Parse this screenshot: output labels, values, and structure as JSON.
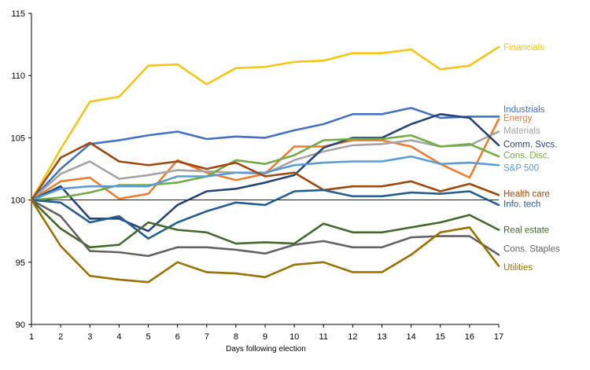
{
  "chart_data": {
    "type": "line",
    "title": "",
    "xlabel": "Days following election",
    "ylabel": "",
    "x": [
      1,
      2,
      3,
      4,
      5,
      6,
      7,
      8,
      9,
      10,
      11,
      12,
      13,
      14,
      15,
      16,
      17
    ],
    "xlim": [
      1,
      17
    ],
    "ylim": [
      90,
      115
    ],
    "yticks": [
      90,
      95,
      100,
      105,
      110,
      115
    ],
    "reference_line": 100,
    "grid": false,
    "legend": "direct labels at right end of lines",
    "series": [
      {
        "name": "Financials",
        "color": "#F5C518",
        "values": [
          100,
          104.1,
          107.9,
          108.3,
          110.8,
          110.9,
          109.3,
          110.6,
          110.7,
          111.1,
          111.2,
          111.8,
          111.8,
          112.1,
          110.5,
          110.8,
          112.3
        ]
      },
      {
        "name": "Industrials",
        "color": "#4472C4",
        "values": [
          100,
          102.5,
          104.5,
          104.8,
          105.2,
          105.5,
          104.9,
          105.1,
          105.0,
          105.6,
          106.1,
          106.9,
          106.9,
          107.4,
          106.6,
          106.7,
          106.7
        ]
      },
      {
        "name": "Energy",
        "color": "#ED7D31",
        "values": [
          100,
          101.5,
          101.8,
          100.1,
          100.5,
          103.2,
          102.2,
          101.6,
          102.1,
          104.3,
          104.3,
          104.8,
          104.8,
          104.3,
          102.9,
          101.8,
          106.5
        ]
      },
      {
        "name": "Materials",
        "color": "#A5A5A5",
        "values": [
          100,
          102.1,
          103.1,
          101.7,
          102.0,
          102.4,
          102.3,
          102.2,
          102.1,
          103.2,
          103.9,
          104.4,
          104.5,
          104.8,
          104.3,
          104.4,
          105.5
        ]
      },
      {
        "name": "Comm. Svcs.",
        "color": "#264478",
        "values": [
          100,
          101.1,
          98.5,
          98.5,
          97.5,
          99.6,
          100.7,
          100.9,
          101.4,
          102.0,
          104.2,
          105.0,
          105.0,
          106.1,
          106.9,
          106.6,
          104.4
        ]
      },
      {
        "name": "Cons. Disc.",
        "color": "#70AD47",
        "values": [
          100,
          100.2,
          100.6,
          101.2,
          101.2,
          101.4,
          101.9,
          103.2,
          102.9,
          103.6,
          104.8,
          104.9,
          104.9,
          105.2,
          104.3,
          104.5,
          103.5
        ]
      },
      {
        "name": "S&P 500",
        "color": "#5B9BD5",
        "values": [
          100,
          100.9,
          101.1,
          101.1,
          101.1,
          101.9,
          101.9,
          102.2,
          102.2,
          102.8,
          103.0,
          103.1,
          103.1,
          103.5,
          102.9,
          103.0,
          102.8
        ]
      },
      {
        "name": "Health care",
        "color": "#9E480E",
        "values": [
          100,
          103.4,
          104.6,
          103.1,
          102.8,
          103.1,
          102.5,
          103.0,
          101.9,
          102.2,
          100.8,
          101.1,
          101.1,
          101.5,
          100.7,
          101.3,
          100.4
        ]
      },
      {
        "name": "Info. tech",
        "color": "#255E91",
        "values": [
          100,
          99.8,
          98.2,
          98.7,
          96.9,
          98.2,
          99.1,
          99.8,
          99.6,
          100.7,
          100.8,
          100.3,
          100.3,
          100.6,
          100.5,
          100.7,
          99.6
        ]
      },
      {
        "name": "Real estate",
        "color": "#43682B",
        "values": [
          100,
          97.7,
          96.2,
          96.4,
          98.2,
          97.6,
          97.4,
          96.5,
          96.6,
          96.5,
          98.1,
          97.4,
          97.4,
          97.8,
          98.2,
          98.8,
          97.6
        ]
      },
      {
        "name": "Cons. Staples",
        "color": "#636363",
        "values": [
          100,
          98.7,
          95.9,
          95.8,
          95.5,
          96.2,
          96.2,
          96.0,
          95.7,
          96.4,
          96.7,
          96.2,
          96.2,
          97.0,
          97.1,
          97.1,
          95.6
        ]
      },
      {
        "name": "Utilities",
        "color": "#997300",
        "values": [
          100,
          96.3,
          93.9,
          93.6,
          93.4,
          95.0,
          94.2,
          94.1,
          93.8,
          94.8,
          95.0,
          94.2,
          94.2,
          95.6,
          97.4,
          97.8,
          94.7
        ]
      }
    ],
    "labels": [
      {
        "series": "Financials",
        "text": "Financials",
        "color": "#F5C518",
        "at_y": 112.3
      },
      {
        "series": "Industrials",
        "text": "Industrials",
        "color": "#4472C4",
        "at_y": 107.3
      },
      {
        "series": "Energy",
        "text": "Energy",
        "color": "#ED7D31",
        "at_y": 106.6
      },
      {
        "series": "Materials",
        "text": "Materials",
        "color": "#A5A5A5",
        "at_y": 105.6
      },
      {
        "series": "Comm. Svcs.",
        "text": "Comm. Svcs.",
        "color": "#264478",
        "at_y": 104.5
      },
      {
        "series": "Cons. Disc.",
        "text": "Cons. Disc.",
        "color": "#70AD47",
        "at_y": 103.6
      },
      {
        "series": "S&P 500",
        "text": "S&P 500",
        "color": "#5B9BD5",
        "at_y": 102.6
      },
      {
        "series": "Health care",
        "text": "Health care",
        "color": "#9E480E",
        "at_y": 100.5
      },
      {
        "series": "Info. tech",
        "text": "Info. tech",
        "color": "#255E91",
        "at_y": 99.7
      },
      {
        "series": "Real estate",
        "text": "Real estate",
        "color": "#43682B",
        "at_y": 97.6
      },
      {
        "series": "Cons. Staples",
        "text": "Cons. Staples",
        "color": "#636363",
        "at_y": 96.1
      },
      {
        "series": "Utilities",
        "text": "Utilities",
        "color": "#997300",
        "at_y": 94.6
      }
    ]
  }
}
